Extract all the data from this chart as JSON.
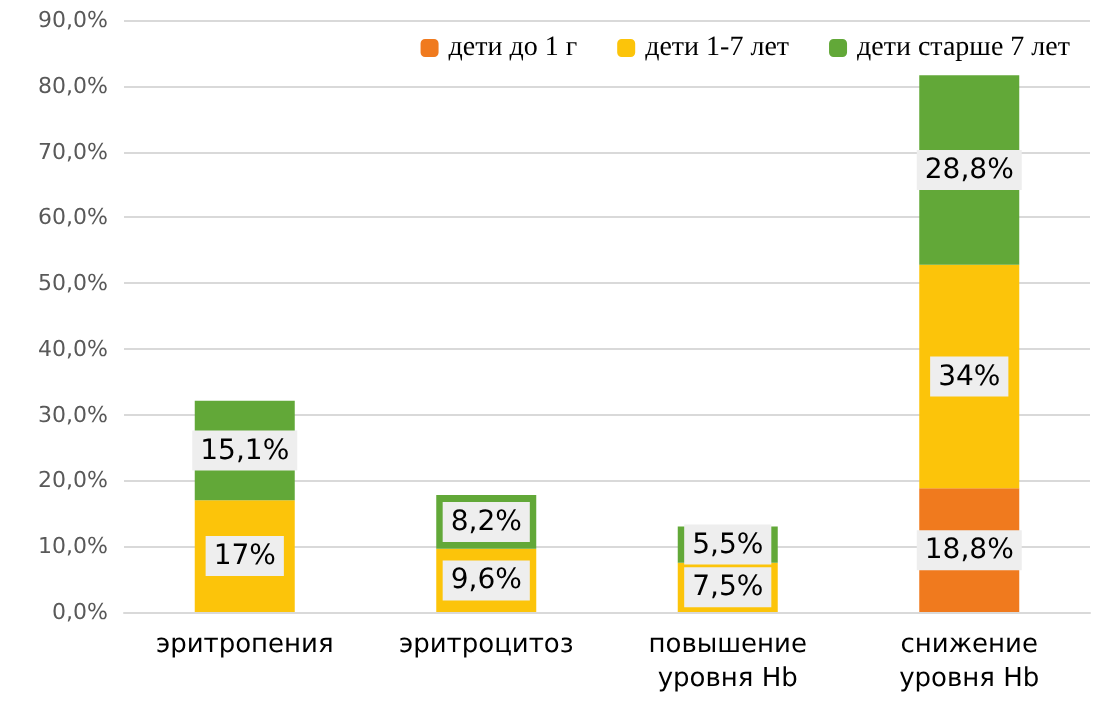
{
  "chart_data": {
    "type": "bar",
    "stacked": true,
    "categories": [
      "эритропения",
      "эритроцитоз",
      "повышение уровня Hb",
      "снижение уровня Hb"
    ],
    "series": [
      {
        "name": "дети до 1 г",
        "color": "#f07a1e",
        "values": [
          null,
          null,
          null,
          18.8
        ],
        "value_labels": [
          null,
          null,
          null,
          "18,8%"
        ]
      },
      {
        "name": "дети 1-7 лет",
        "color": "#fcc40a",
        "values": [
          17,
          9.6,
          7.5,
          34
        ],
        "value_labels": [
          "17%",
          "9,6%",
          "7,5%",
          "34%"
        ]
      },
      {
        "name": "дети старше 7 лет",
        "color": "#62a838",
        "values": [
          15.1,
          8.2,
          5.5,
          28.8
        ],
        "value_labels": [
          "15,1%",
          "8,2%",
          "5,5%",
          "28,8%"
        ]
      }
    ],
    "ylim": [
      0,
      90
    ],
    "yticks": [
      {
        "value": 0,
        "label": "0,0%"
      },
      {
        "value": 10,
        "label": "10,0%"
      },
      {
        "value": 20,
        "label": "20,0%"
      },
      {
        "value": 30,
        "label": "30,0%"
      },
      {
        "value": 40,
        "label": "40,0%"
      },
      {
        "value": 50,
        "label": "50,0%"
      },
      {
        "value": 60,
        "label": "60,0%"
      },
      {
        "value": 70,
        "label": "70,0%"
      },
      {
        "value": 80,
        "label": "80,0%"
      },
      {
        "value": 90,
        "label": "90,0%"
      }
    ],
    "grid": "y",
    "legend": "top right"
  }
}
